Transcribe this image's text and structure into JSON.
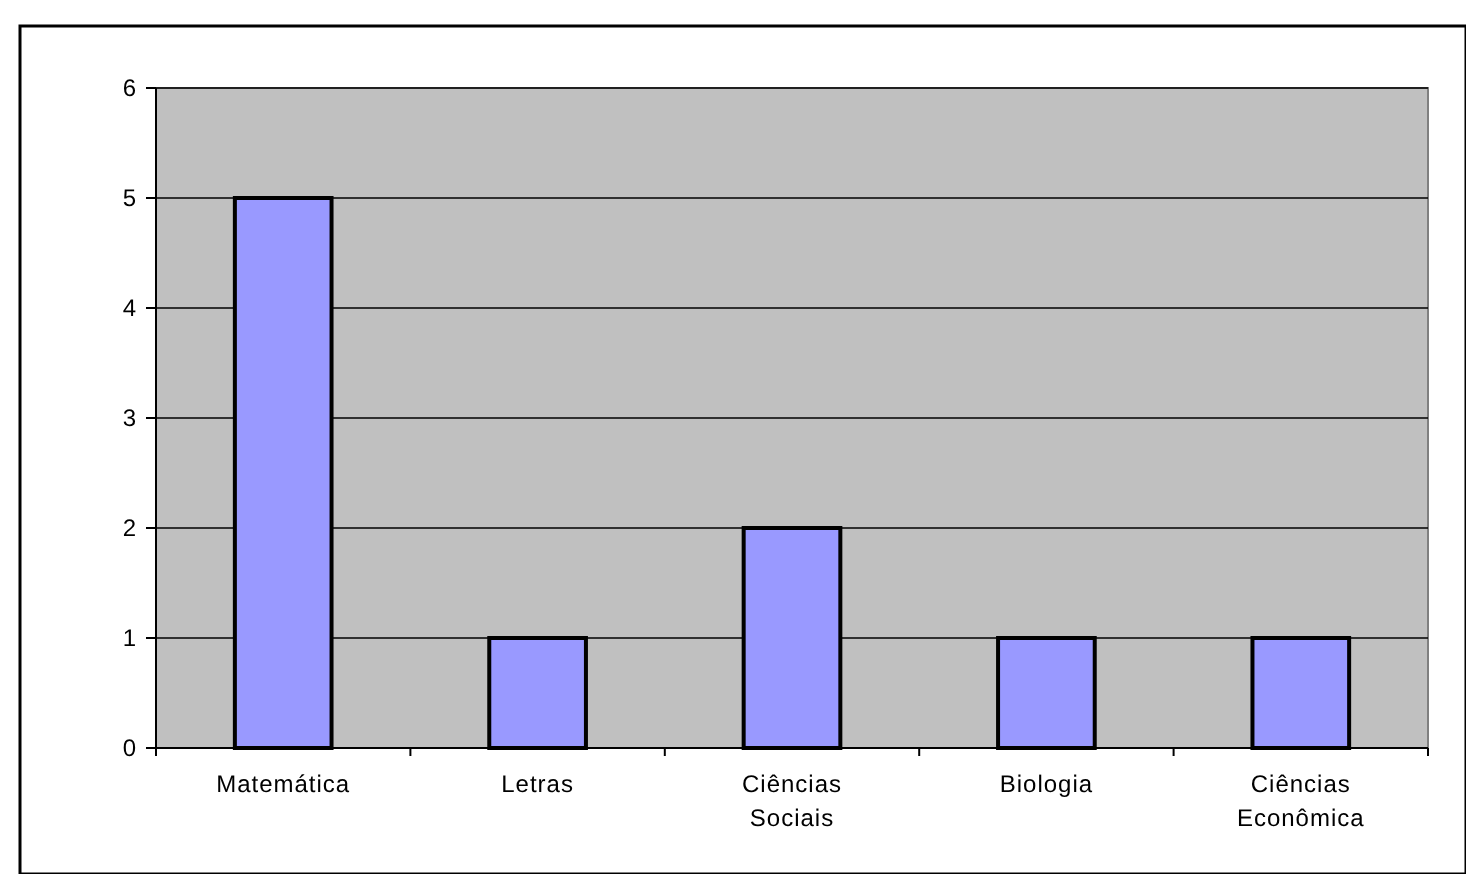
{
  "chart_data": {
    "type": "bar",
    "categories": [
      "Matemática",
      "Letras",
      "Ciências Sociais",
      "Biologia",
      "Ciências Econômica"
    ],
    "values": [
      5,
      1,
      2,
      1,
      1
    ],
    "color": "#9999ff",
    "ylim": [
      0,
      6
    ],
    "yticks": [
      0,
      1,
      2,
      3,
      4,
      5,
      6
    ],
    "grid": "y"
  }
}
